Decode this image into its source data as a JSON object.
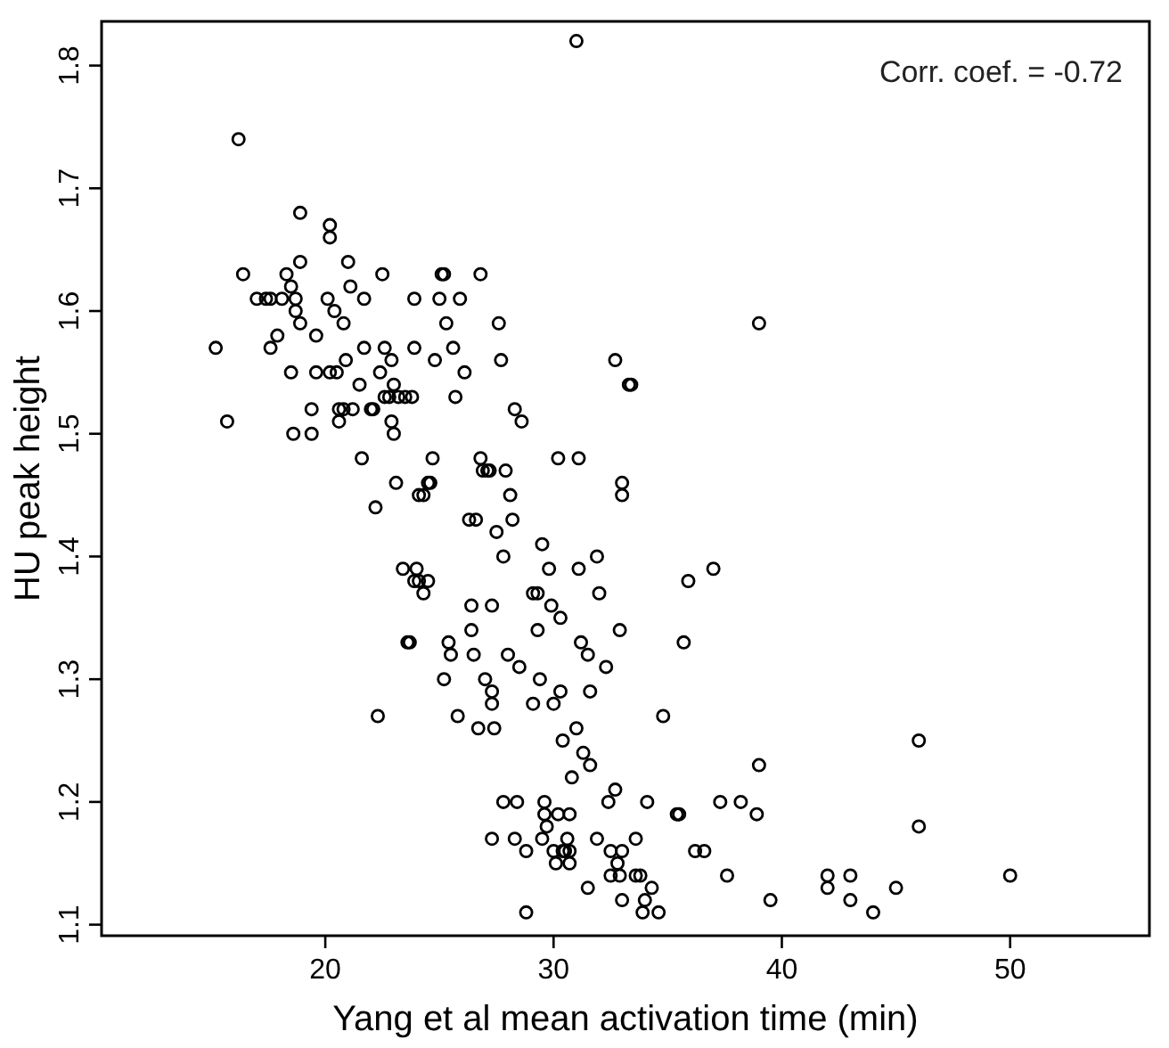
{
  "chart_data": {
    "type": "scatter",
    "xlabel": "Yang et al mean activation time (min)",
    "ylabel": "HU peak height",
    "annotations": [
      "Corr. coef. = -0.72"
    ],
    "xlim": [
      10.2,
      56.1
    ],
    "ylim": [
      1.091,
      1.836
    ],
    "xticks": [
      20,
      30,
      40,
      50
    ],
    "yticks": [
      1.1,
      1.2,
      1.3,
      1.4,
      1.5,
      1.6,
      1.7,
      1.8
    ],
    "grid": false,
    "marker": "circle",
    "series": [
      {
        "color": "#000000",
        "x": [
          15.2,
          15.7,
          16.2,
          16.4,
          17.0,
          17.4,
          17.6,
          17.6,
          17.9,
          18.1,
          18.3,
          18.5,
          18.5,
          18.6,
          18.7,
          18.7,
          18.9,
          18.9,
          18.9,
          19.4,
          19.4,
          19.6,
          19.6,
          20.1,
          20.2,
          20.2,
          20.2,
          20.4,
          20.5,
          20.6,
          20.6,
          20.8,
          20.8,
          20.9,
          21.0,
          21.1,
          21.2,
          21.5,
          21.6,
          21.7,
          21.7,
          22.0,
          22.1,
          22.2,
          22.3,
          22.4,
          22.5,
          22.6,
          22.6,
          22.8,
          22.9,
          22.9,
          23.0,
          23.0,
          23.1,
          23.2,
          23.4,
          23.5,
          23.6,
          23.7,
          23.8,
          23.9,
          23.9,
          23.9,
          24.0,
          24.1,
          24.1,
          24.3,
          24.3,
          24.5,
          24.5,
          24.6,
          24.7,
          24.8,
          25.0,
          25.1,
          25.2,
          25.2,
          25.3,
          25.4,
          25.5,
          25.6,
          25.7,
          25.8,
          25.9,
          26.1,
          26.3,
          26.4,
          26.4,
          26.5,
          26.6,
          26.7,
          26.8,
          26.8,
          26.9,
          27.0,
          27.1,
          27.2,
          27.3,
          27.3,
          27.3,
          27.4,
          27.3,
          27.5,
          27.6,
          27.7,
          27.8,
          27.9,
          27.8,
          28.0,
          28.1,
          28.2,
          28.3,
          28.3,
          28.4,
          28.5,
          28.6,
          28.8,
          28.8,
          29.1,
          29.1,
          29.3,
          29.3,
          29.4,
          29.5,
          29.5,
          29.6,
          29.6,
          29.7,
          29.8,
          29.9,
          30.0,
          30.0,
          30.2,
          30.1,
          30.2,
          30.3,
          30.3,
          30.4,
          30.4,
          30.5,
          30.6,
          30.7,
          30.7,
          30.7,
          30.8,
          31.0,
          31.1,
          31.0,
          31.1,
          31.2,
          31.3,
          31.5,
          31.5,
          31.6,
          31.6,
          31.9,
          31.9,
          32.0,
          32.3,
          32.4,
          32.5,
          32.5,
          32.7,
          32.8,
          32.7,
          32.9,
          33.0,
          33.0,
          32.9,
          33.0,
          33.0,
          33.3,
          33.4,
          33.6,
          33.6,
          33.8,
          33.9,
          34.0,
          34.1,
          34.3,
          34.6,
          34.8,
          35.4,
          35.5,
          35.7,
          35.9,
          36.2,
          36.6,
          37.0,
          37.3,
          37.6,
          38.2,
          38.9,
          39.0,
          39.0,
          39.5,
          42.0,
          42.0,
          43.0,
          43.0,
          44.0,
          45.0,
          46.0,
          46.0,
          50.0
        ],
        "values": [
          1.57,
          1.51,
          1.74,
          1.63,
          1.61,
          1.61,
          1.61,
          1.57,
          1.58,
          1.61,
          1.63,
          1.62,
          1.55,
          1.5,
          1.61,
          1.6,
          1.64,
          1.59,
          1.68,
          1.52,
          1.5,
          1.58,
          1.55,
          1.61,
          1.66,
          1.67,
          1.55,
          1.6,
          1.55,
          1.52,
          1.51,
          1.52,
          1.59,
          1.56,
          1.64,
          1.62,
          1.52,
          1.54,
          1.48,
          1.57,
          1.61,
          1.52,
          1.52,
          1.44,
          1.27,
          1.55,
          1.63,
          1.53,
          1.57,
          1.53,
          1.56,
          1.51,
          1.54,
          1.5,
          1.46,
          1.53,
          1.39,
          1.53,
          1.33,
          1.33,
          1.53,
          1.57,
          1.61,
          1.38,
          1.39,
          1.45,
          1.38,
          1.45,
          1.37,
          1.38,
          1.46,
          1.46,
          1.48,
          1.56,
          1.61,
          1.63,
          1.63,
          1.3,
          1.59,
          1.33,
          1.32,
          1.57,
          1.53,
          1.27,
          1.61,
          1.55,
          1.43,
          1.36,
          1.34,
          1.32,
          1.43,
          1.26,
          1.63,
          1.48,
          1.47,
          1.3,
          1.47,
          1.47,
          1.36,
          1.29,
          1.28,
          1.26,
          1.17,
          1.42,
          1.59,
          1.56,
          1.4,
          1.47,
          1.2,
          1.32,
          1.45,
          1.43,
          1.52,
          1.17,
          1.2,
          1.31,
          1.51,
          1.16,
          1.11,
          1.28,
          1.37,
          1.37,
          1.34,
          1.3,
          1.41,
          1.17,
          1.2,
          1.19,
          1.18,
          1.39,
          1.36,
          1.28,
          1.16,
          1.19,
          1.15,
          1.48,
          1.35,
          1.29,
          1.25,
          1.16,
          1.16,
          1.17,
          1.16,
          1.15,
          1.19,
          1.22,
          1.26,
          1.48,
          1.82,
          1.39,
          1.33,
          1.24,
          1.32,
          1.13,
          1.23,
          1.29,
          1.4,
          1.17,
          1.37,
          1.31,
          1.2,
          1.16,
          1.14,
          1.21,
          1.15,
          1.56,
          1.14,
          1.46,
          1.45,
          1.34,
          1.12,
          1.16,
          1.54,
          1.54,
          1.17,
          1.14,
          1.14,
          1.11,
          1.12,
          1.2,
          1.13,
          1.11,
          1.27,
          1.19,
          1.19,
          1.33,
          1.38,
          1.16,
          1.16,
          1.39,
          1.2,
          1.14,
          1.2,
          1.19,
          1.59,
          1.23,
          1.12,
          1.13,
          1.14,
          1.14,
          1.12,
          1.11,
          1.13,
          1.25,
          1.18,
          1.14
        ]
      }
    ]
  }
}
